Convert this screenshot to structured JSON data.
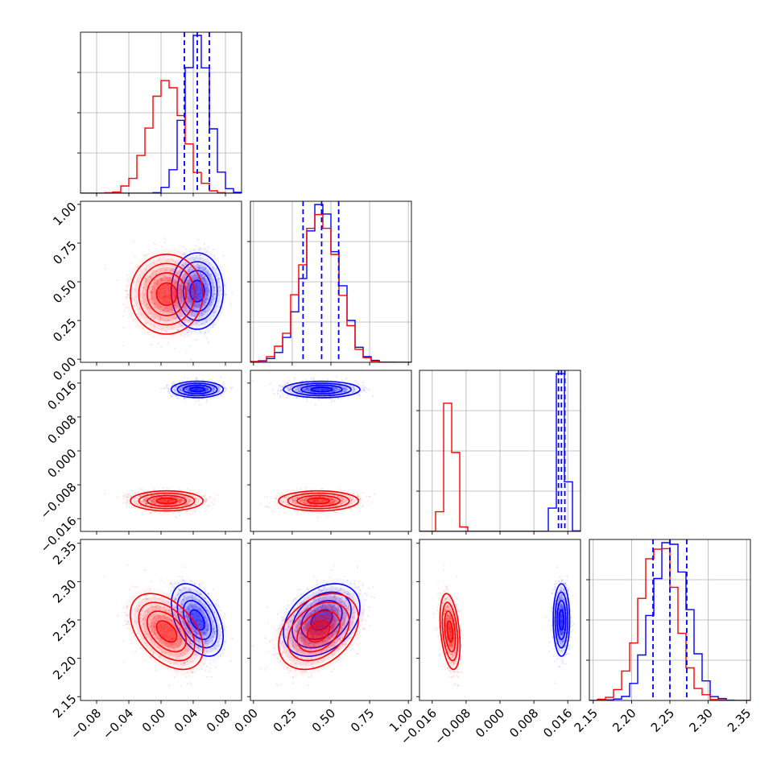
{
  "colors": {
    "blue": "#0000ff",
    "red": "#ff0000",
    "grid": "#b0b0b0",
    "axis": "#000000"
  },
  "chart_data": {
    "type": "corner",
    "parameters": [
      {
        "range": [
          -0.1,
          0.1
        ],
        "ticks": [
          "−0.08",
          "−0.04",
          "0.00",
          "0.04",
          "0.08"
        ],
        "tick_values": [
          -0.08,
          -0.04,
          0.0,
          0.04,
          0.08
        ]
      },
      {
        "range": [
          -0.02,
          1.02
        ],
        "ticks": [
          "0.00",
          "0.25",
          "0.50",
          "0.75",
          "1.00"
        ],
        "tick_values": [
          0.0,
          0.25,
          0.5,
          0.75,
          1.0
        ]
      },
      {
        "range": [
          -0.019,
          0.019
        ],
        "ticks": [
          "−0.016",
          "−0.008",
          "0.000",
          "0.008",
          "0.016"
        ],
        "tick_values": [
          -0.016,
          -0.008,
          0.0,
          0.008,
          0.016
        ]
      },
      {
        "range": [
          2.145,
          2.355
        ],
        "ticks": [
          "2.15",
          "2.20",
          "2.25",
          "2.30",
          "2.35"
        ],
        "tick_values": [
          2.15,
          2.2,
          2.25,
          2.3,
          2.35
        ]
      }
    ],
    "series": [
      {
        "color": "#0000ff",
        "means": [
          0.045,
          0.44,
          0.0145,
          2.25
        ],
        "sigmas": [
          0.015,
          0.115,
          0.0009,
          0.022
        ],
        "correlation": [
          [
            1,
            0,
            0,
            -0.45
          ],
          [
            0,
            1,
            0,
            0.35
          ],
          [
            0,
            0,
            1,
            0
          ],
          [
            -0.45,
            0.35,
            0,
            1
          ]
        ],
        "quantiles": [
          [
            0.029,
            0.045,
            0.06
          ],
          [
            0.32,
            0.44,
            0.55
          ],
          [
            0.0138,
            0.0145,
            0.0153
          ],
          [
            2.228,
            2.25,
            2.272
          ]
        ]
      },
      {
        "color": "#ff0000",
        "means": [
          0.007,
          0.42,
          -0.0118,
          2.235
        ],
        "sigmas": [
          0.021,
          0.12,
          0.0011,
          0.023
        ],
        "correlation": [
          [
            1,
            0,
            0,
            -0.45
          ],
          [
            0,
            1,
            0,
            0.35
          ],
          [
            0,
            0,
            1,
            -0.35
          ],
          [
            -0.45,
            0.35,
            -0.35,
            1
          ]
        ],
        "quantiles": []
      }
    ]
  }
}
